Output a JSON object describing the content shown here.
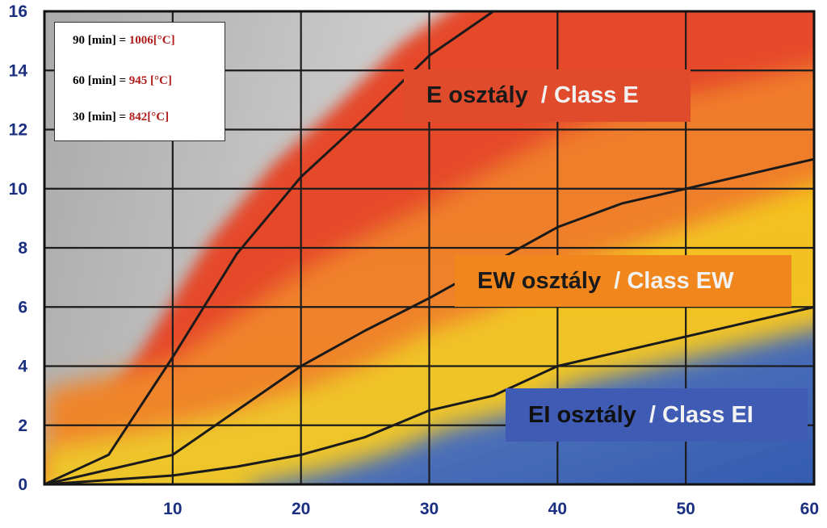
{
  "chart_data": {
    "type": "line",
    "x_ticks": [
      10,
      20,
      30,
      40,
      50,
      60
    ],
    "y_ticks": [
      0,
      2,
      4,
      6,
      8,
      10,
      12,
      14,
      16
    ],
    "xlim": [
      0,
      60
    ],
    "ylim": [
      0,
      16
    ],
    "grid": true,
    "series": [
      {
        "values": [
          [
            0,
            0
          ],
          [
            5,
            1
          ],
          [
            10,
            4.3
          ],
          [
            15,
            7.8
          ],
          [
            20,
            10.4
          ],
          [
            25,
            12.4
          ],
          [
            30,
            14.5
          ],
          [
            35,
            16
          ]
        ]
      },
      {
        "values": [
          [
            0,
            0
          ],
          [
            10,
            1
          ],
          [
            15,
            2.5
          ],
          [
            20,
            4
          ],
          [
            25,
            5.2
          ],
          [
            30,
            6.3
          ],
          [
            35,
            7.5
          ],
          [
            40,
            8.7
          ],
          [
            45,
            9.5
          ],
          [
            50,
            10
          ],
          [
            55,
            10.5
          ],
          [
            60,
            11
          ]
        ]
      },
      {
        "values": [
          [
            0,
            0
          ],
          [
            10,
            0.3
          ],
          [
            15,
            0.6
          ],
          [
            20,
            1
          ],
          [
            25,
            1.6
          ],
          [
            30,
            2.5
          ],
          [
            35,
            3
          ],
          [
            40,
            4
          ],
          [
            45,
            4.5
          ],
          [
            50,
            5
          ],
          [
            55,
            5.5
          ],
          [
            60,
            6
          ]
        ]
      }
    ],
    "regions": [
      {
        "label": "E osztály",
        "label_en": "/ Class E",
        "color": "#e04b2c"
      },
      {
        "label": "EW osztály",
        "label_en": "/ Class EW",
        "color": "#f0861c"
      },
      {
        "label": "EI osztály",
        "label_en": "/ Class EI",
        "color": "#3f5bb4"
      }
    ],
    "legend": [
      {
        "label": "90 [min] = ",
        "value": "1006[°C]"
      },
      {
        "label": "60 [min] = ",
        "value": "945 [°C]"
      },
      {
        "label": "30 [min] = ",
        "value": "842[°C]"
      }
    ],
    "colors": {
      "tick_text": "#1a2f80",
      "grid": "#1c1c1c",
      "curve": "#1a1a1a",
      "background_grey": "#c4c4c4",
      "zone_red": "#e8492c",
      "zone_orange": "#ec7d22",
      "zone_yellow": "#f3c51a",
      "zone_blue": "#2f5cb2"
    }
  }
}
